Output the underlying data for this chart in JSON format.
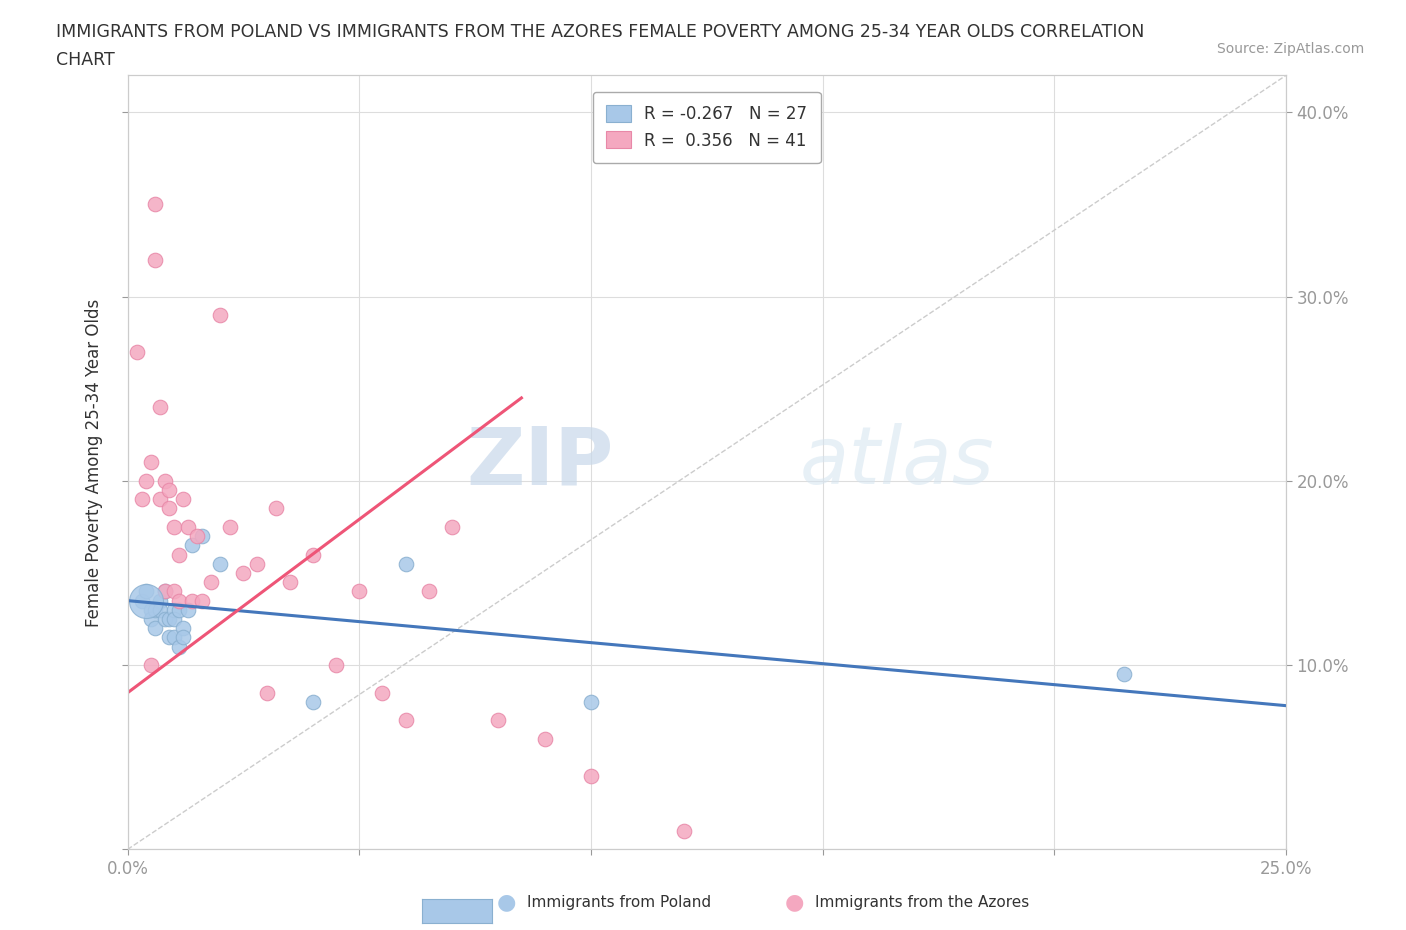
{
  "title_line1": "IMMIGRANTS FROM POLAND VS IMMIGRANTS FROM THE AZORES FEMALE POVERTY AMONG 25-34 YEAR OLDS CORRELATION",
  "title_line2": "CHART",
  "source": "Source: ZipAtlas.com",
  "ylabel": "Female Poverty Among 25-34 Year Olds",
  "xlim": [
    0.0,
    0.25
  ],
  "ylim": [
    0.0,
    0.42
  ],
  "legend_poland": "Immigrants from Poland",
  "legend_azores": "Immigrants from the Azores",
  "r_poland": "-0.267",
  "n_poland": "27",
  "r_azores": "0.356",
  "n_azores": "41",
  "color_poland": "#a8c8e8",
  "color_azores": "#f4a8c0",
  "line_color_poland": "#4477bb",
  "line_color_azores": "#ee5577",
  "diagonal_color": "#cccccc",
  "watermark_zip": "ZIP",
  "watermark_atlas": "atlas",
  "poland_x": [
    0.003,
    0.004,
    0.005,
    0.005,
    0.006,
    0.006,
    0.007,
    0.007,
    0.008,
    0.008,
    0.009,
    0.009,
    0.01,
    0.01,
    0.01,
    0.011,
    0.011,
    0.012,
    0.012,
    0.013,
    0.014,
    0.016,
    0.02,
    0.04,
    0.06,
    0.1,
    0.215
  ],
  "poland_y": [
    0.135,
    0.14,
    0.13,
    0.125,
    0.13,
    0.12,
    0.135,
    0.13,
    0.125,
    0.14,
    0.115,
    0.125,
    0.13,
    0.115,
    0.125,
    0.11,
    0.13,
    0.12,
    0.115,
    0.13,
    0.165,
    0.17,
    0.155,
    0.08,
    0.155,
    0.08,
    0.095
  ],
  "azores_x": [
    0.002,
    0.003,
    0.004,
    0.005,
    0.005,
    0.006,
    0.006,
    0.007,
    0.007,
    0.008,
    0.008,
    0.009,
    0.009,
    0.01,
    0.01,
    0.011,
    0.011,
    0.012,
    0.013,
    0.014,
    0.015,
    0.016,
    0.018,
    0.02,
    0.022,
    0.025,
    0.028,
    0.03,
    0.032,
    0.035,
    0.04,
    0.045,
    0.05,
    0.055,
    0.06,
    0.065,
    0.07,
    0.08,
    0.09,
    0.1,
    0.12
  ],
  "azores_y": [
    0.27,
    0.19,
    0.2,
    0.21,
    0.1,
    0.35,
    0.32,
    0.24,
    0.19,
    0.14,
    0.2,
    0.185,
    0.195,
    0.14,
    0.175,
    0.135,
    0.16,
    0.19,
    0.175,
    0.135,
    0.17,
    0.135,
    0.145,
    0.29,
    0.175,
    0.15,
    0.155,
    0.085,
    0.185,
    0.145,
    0.16,
    0.1,
    0.14,
    0.085,
    0.07,
    0.14,
    0.175,
    0.07,
    0.06,
    0.04,
    0.01
  ],
  "poland_large_x": [
    0.004
  ],
  "poland_large_y": [
    0.135
  ]
}
